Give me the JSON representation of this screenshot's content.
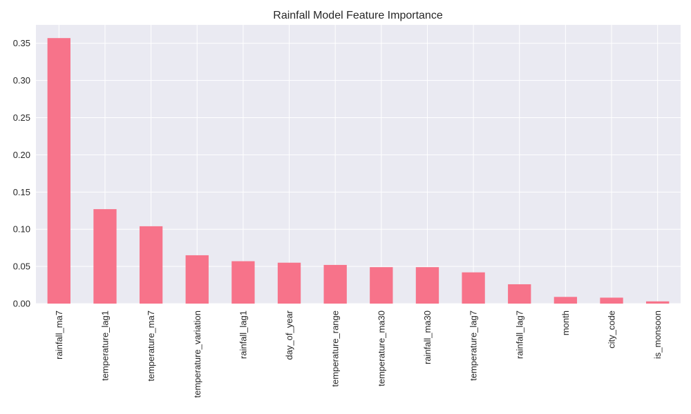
{
  "chart_data": {
    "type": "bar",
    "title": "Rainfall Model Feature Importance",
    "xlabel": "",
    "ylabel": "",
    "categories": [
      "rainfall_ma7",
      "temperature_lag1",
      "temperature_ma7",
      "temperature_variation",
      "rainfall_lag1",
      "day_of_year",
      "temperature_range",
      "temperature_ma30",
      "rainfall_ma30",
      "temperature_lag7",
      "rainfall_lag7",
      "month",
      "city_code",
      "is_monsoon"
    ],
    "values": [
      0.357,
      0.127,
      0.104,
      0.065,
      0.057,
      0.055,
      0.052,
      0.049,
      0.049,
      0.042,
      0.026,
      0.009,
      0.008,
      0.003
    ],
    "ylim": [
      0,
      0.3748
    ],
    "yticks": [
      0.0,
      0.05,
      0.1,
      0.15,
      0.2,
      0.25,
      0.3,
      0.35
    ],
    "ytick_labels": [
      "0.00",
      "0.05",
      "0.10",
      "0.15",
      "0.20",
      "0.25",
      "0.30",
      "0.35"
    ],
    "grid": true,
    "bar_color": "#f7738a",
    "plot_background": "#eaeaf2",
    "grid_color": "#ffffff"
  }
}
